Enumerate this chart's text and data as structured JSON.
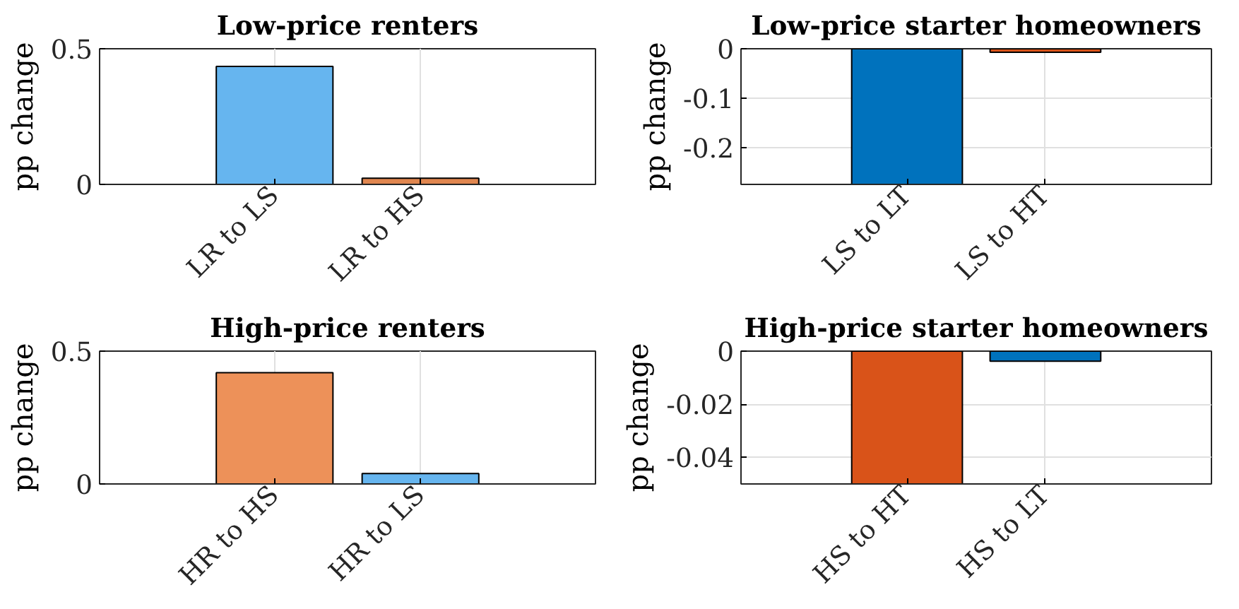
{
  "chart_data": [
    {
      "type": "bar",
      "title": "Low-price renters",
      "ylabel": "pp change",
      "categories": [
        "LR to LS",
        "LR to HS"
      ],
      "values": [
        0.435,
        0.023
      ],
      "colors": [
        "#66b5ef",
        "#e0864f"
      ],
      "ylim": [
        0,
        0.5
      ],
      "yticks": [
        0,
        0.5
      ],
      "grid": true
    },
    {
      "type": "bar",
      "title": "Low-price starter homeowners",
      "ylabel": "pp change",
      "categories": [
        "LS to LT",
        "LS to HT"
      ],
      "values": [
        -0.275,
        -0.007
      ],
      "colors": [
        "#0072bd",
        "#d95319"
      ],
      "ylim": [
        -0.275,
        0
      ],
      "yticks": [
        -0.2,
        -0.1,
        0
      ],
      "grid": true
    },
    {
      "type": "bar",
      "title": "High-price renters",
      "ylabel": "pp change",
      "categories": [
        "HR to HS",
        "HR to LS"
      ],
      "values": [
        0.419,
        0.039
      ],
      "colors": [
        "#ed9159",
        "#66b5ef"
      ],
      "ylim": [
        0,
        0.5
      ],
      "yticks": [
        0,
        0.5
      ],
      "grid": true
    },
    {
      "type": "bar",
      "title": "High-price starter homeowners",
      "ylabel": "pp change",
      "categories": [
        "HS to HT",
        "HS to LT"
      ],
      "values": [
        -0.05,
        -0.0038
      ],
      "colors": [
        "#d95319",
        "#0072bd"
      ],
      "ylim": [
        -0.05,
        0
      ],
      "yticks": [
        -0.04,
        -0.02,
        0
      ],
      "grid": true
    }
  ]
}
